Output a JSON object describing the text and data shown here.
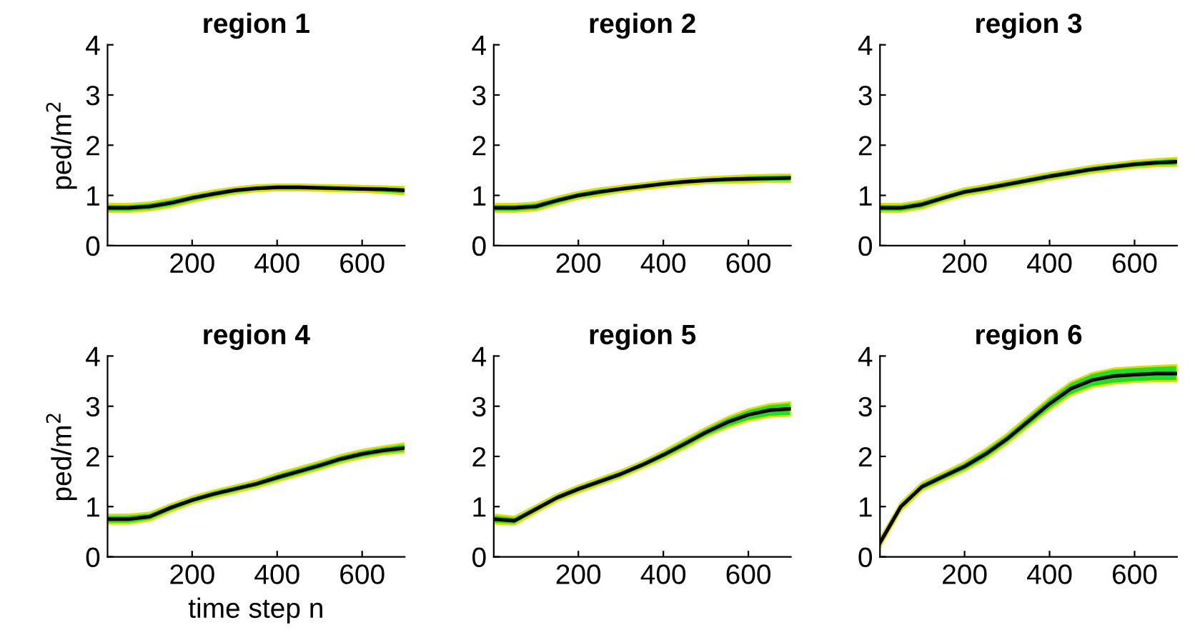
{
  "chart_data": [
    {
      "type": "line",
      "title": "region 1",
      "ylabel": "ped/m$^{2}$",
      "xlim": [
        1,
        700
      ],
      "ylim": [
        0,
        4
      ],
      "xticks": [
        200,
        400,
        600
      ],
      "yticks": [
        0,
        1,
        2,
        3,
        4
      ],
      "grid": false,
      "marker": "none",
      "line_style": "solid",
      "x": [
        1,
        50,
        100,
        150,
        200,
        250,
        300,
        350,
        400,
        450,
        500,
        550,
        600,
        650,
        700
      ],
      "series": [
        {
          "color": "#000000",
          "values": [
            0.75,
            0.75,
            0.78,
            0.85,
            0.95,
            1.03,
            1.1,
            1.14,
            1.16,
            1.16,
            1.15,
            1.14,
            1.13,
            1.12,
            1.1
          ],
          "lower": [
            0.67,
            0.67,
            0.7,
            0.77,
            0.87,
            0.96,
            1.03,
            1.08,
            1.1,
            1.1,
            1.09,
            1.08,
            1.07,
            1.05,
            1.02
          ],
          "upper": [
            0.83,
            0.83,
            0.86,
            0.93,
            1.02,
            1.1,
            1.16,
            1.2,
            1.22,
            1.22,
            1.21,
            1.2,
            1.19,
            1.18,
            1.17
          ]
        }
      ]
    },
    {
      "type": "line",
      "title": "region 2",
      "xlim": [
        1,
        700
      ],
      "ylim": [
        0,
        4
      ],
      "xticks": [
        200,
        400,
        600
      ],
      "yticks": [
        0,
        1,
        2,
        3,
        4
      ],
      "grid": false,
      "marker": "none",
      "line_style": "solid",
      "x": [
        1,
        50,
        100,
        150,
        200,
        250,
        300,
        350,
        400,
        450,
        500,
        550,
        600,
        650,
        700
      ],
      "series": [
        {
          "color": "#000000",
          "values": [
            0.75,
            0.75,
            0.78,
            0.9,
            1.0,
            1.07,
            1.13,
            1.18,
            1.23,
            1.27,
            1.3,
            1.32,
            1.33,
            1.34,
            1.35
          ],
          "lower": [
            0.67,
            0.67,
            0.7,
            0.82,
            0.93,
            1.0,
            1.07,
            1.12,
            1.17,
            1.21,
            1.24,
            1.25,
            1.26,
            1.27,
            1.27
          ],
          "upper": [
            0.83,
            0.83,
            0.86,
            0.97,
            1.07,
            1.14,
            1.19,
            1.24,
            1.29,
            1.33,
            1.36,
            1.38,
            1.4,
            1.41,
            1.42
          ]
        }
      ]
    },
    {
      "type": "line",
      "title": "region 3",
      "xlim": [
        1,
        700
      ],
      "ylim": [
        0,
        4
      ],
      "xticks": [
        200,
        400,
        600
      ],
      "yticks": [
        0,
        1,
        2,
        3,
        4
      ],
      "grid": false,
      "marker": "none",
      "line_style": "solid",
      "x": [
        1,
        50,
        100,
        150,
        200,
        250,
        300,
        350,
        400,
        450,
        500,
        550,
        600,
        650,
        700
      ],
      "series": [
        {
          "color": "#000000",
          "values": [
            0.75,
            0.75,
            0.82,
            0.95,
            1.07,
            1.14,
            1.22,
            1.3,
            1.38,
            1.45,
            1.52,
            1.57,
            1.62,
            1.65,
            1.67
          ],
          "lower": [
            0.67,
            0.67,
            0.74,
            0.88,
            1.0,
            1.07,
            1.15,
            1.23,
            1.31,
            1.38,
            1.45,
            1.5,
            1.55,
            1.58,
            1.59
          ],
          "upper": [
            0.83,
            0.83,
            0.9,
            1.02,
            1.14,
            1.21,
            1.29,
            1.37,
            1.45,
            1.52,
            1.59,
            1.64,
            1.69,
            1.72,
            1.75
          ]
        }
      ]
    },
    {
      "type": "line",
      "title": "region 4",
      "ylabel": "ped/m$^{2}$",
      "xlabel": "time step n",
      "xlim": [
        1,
        700
      ],
      "ylim": [
        0,
        4
      ],
      "xticks": [
        200,
        400,
        600
      ],
      "yticks": [
        0,
        1,
        2,
        3,
        4
      ],
      "grid": false,
      "marker": "none",
      "line_style": "solid",
      "x": [
        1,
        50,
        100,
        150,
        200,
        250,
        300,
        350,
        400,
        450,
        500,
        550,
        600,
        650,
        700
      ],
      "series": [
        {
          "color": "#000000",
          "values": [
            0.75,
            0.75,
            0.8,
            0.98,
            1.13,
            1.25,
            1.35,
            1.45,
            1.58,
            1.7,
            1.82,
            1.95,
            2.05,
            2.12,
            2.17
          ],
          "lower": [
            0.66,
            0.66,
            0.72,
            0.9,
            1.06,
            1.18,
            1.28,
            1.38,
            1.5,
            1.62,
            1.74,
            1.87,
            1.97,
            2.04,
            2.08
          ],
          "upper": [
            0.84,
            0.84,
            0.88,
            1.05,
            1.2,
            1.32,
            1.42,
            1.52,
            1.66,
            1.78,
            1.9,
            2.03,
            2.13,
            2.2,
            2.26
          ]
        }
      ]
    },
    {
      "type": "line",
      "title": "region 5",
      "xlim": [
        1,
        700
      ],
      "ylim": [
        0,
        4
      ],
      "xticks": [
        200,
        400,
        600
      ],
      "yticks": [
        0,
        1,
        2,
        3,
        4
      ],
      "grid": false,
      "marker": "none",
      "line_style": "solid",
      "x": [
        1,
        50,
        100,
        150,
        200,
        250,
        300,
        350,
        400,
        450,
        500,
        550,
        600,
        650,
        700
      ],
      "series": [
        {
          "color": "#000000",
          "values": [
            0.75,
            0.72,
            0.95,
            1.18,
            1.35,
            1.5,
            1.65,
            1.83,
            2.03,
            2.25,
            2.48,
            2.68,
            2.83,
            2.92,
            2.95
          ],
          "lower": [
            0.66,
            0.64,
            0.88,
            1.11,
            1.28,
            1.43,
            1.58,
            1.76,
            1.95,
            2.16,
            2.39,
            2.57,
            2.71,
            2.79,
            2.81
          ],
          "upper": [
            0.84,
            0.8,
            1.02,
            1.25,
            1.42,
            1.57,
            1.72,
            1.9,
            2.11,
            2.34,
            2.57,
            2.78,
            2.94,
            3.04,
            3.08
          ]
        }
      ]
    },
    {
      "type": "line",
      "title": "region 6",
      "xlim": [
        1,
        700
      ],
      "ylim": [
        0,
        4
      ],
      "xticks": [
        200,
        400,
        600
      ],
      "yticks": [
        0,
        1,
        2,
        3,
        4
      ],
      "grid": false,
      "marker": "none",
      "line_style": "solid",
      "x": [
        1,
        50,
        100,
        150,
        200,
        250,
        300,
        350,
        400,
        450,
        500,
        550,
        600,
        650,
        700
      ],
      "series": [
        {
          "color": "#000000",
          "values": [
            0.28,
            1.0,
            1.4,
            1.6,
            1.8,
            2.05,
            2.35,
            2.7,
            3.05,
            3.35,
            3.52,
            3.6,
            3.63,
            3.65,
            3.65
          ],
          "lower": [
            0.2,
            0.92,
            1.32,
            1.52,
            1.71,
            1.95,
            2.25,
            2.59,
            2.93,
            3.22,
            3.38,
            3.45,
            3.48,
            3.5,
            3.5
          ],
          "upper": [
            0.36,
            1.08,
            1.48,
            1.68,
            1.89,
            2.15,
            2.45,
            2.81,
            3.17,
            3.48,
            3.66,
            3.75,
            3.78,
            3.8,
            3.82
          ]
        }
      ]
    }
  ]
}
